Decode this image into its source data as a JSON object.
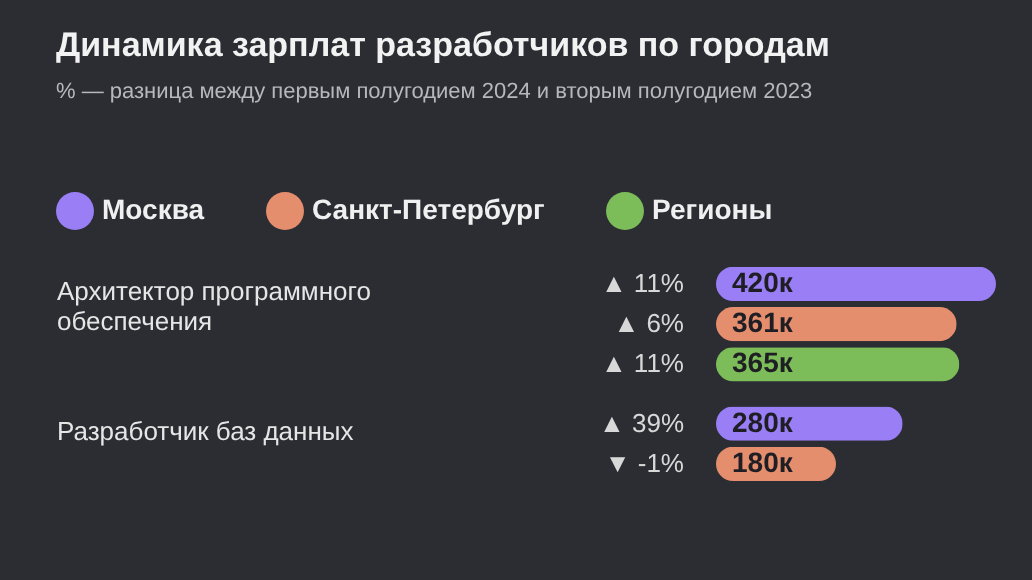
{
  "chart_data": {
    "type": "bar",
    "orientation": "horizontal",
    "title": "Динамика зарплат разработчиков по городам",
    "subtitle": "% — разница между первым полугодием 2024 и вторым полугодием 2023",
    "categories": [
      "Архитектор программного обеспечения",
      "Разработчик баз данных"
    ],
    "series": [
      {
        "name": "Москва",
        "color": "#9a7ef5",
        "values": [
          420,
          280
        ],
        "value_labels": [
          "420к",
          "280к"
        ]
      },
      {
        "name": "Санкт-Петербург",
        "color": "#e58e6e",
        "values": [
          361,
          180
        ],
        "value_labels": [
          "361к",
          "180к"
        ]
      },
      {
        "name": "Регионы",
        "color": "#7cbd5a",
        "values": [
          365,
          null
        ],
        "value_labels": [
          "365к",
          null
        ]
      }
    ],
    "annotations": [
      "▲ 11%",
      "▲ 6%",
      "▲ 11%",
      "▲ 39%",
      "▼ -1%"
    ],
    "legend": "top"
  }
}
